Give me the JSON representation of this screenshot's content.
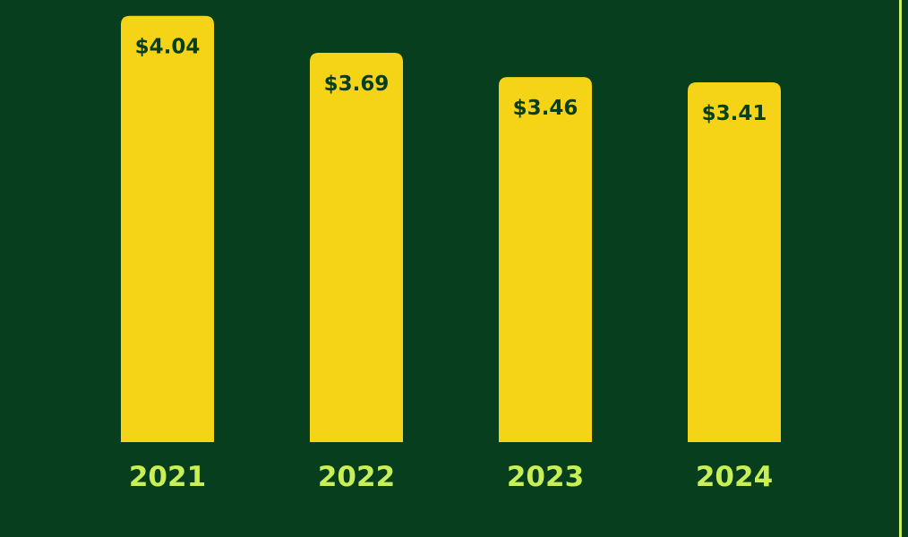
{
  "chart_data": {
    "type": "bar",
    "categories": [
      "2021",
      "2022",
      "2023",
      "2024"
    ],
    "values": [
      4.04,
      3.69,
      3.46,
      3.41
    ],
    "value_labels": [
      "$4.04",
      "$3.69",
      "$3.46",
      "$3.41"
    ],
    "title": "",
    "xlabel": "",
    "ylabel": "",
    "grid": false,
    "legend": "none"
  },
  "colors": {
    "background": "#073f1e",
    "bar": "#f5d418",
    "bar_label": "#073f1e",
    "tick_label": "#c9ef56",
    "border": "#c9ef56"
  }
}
